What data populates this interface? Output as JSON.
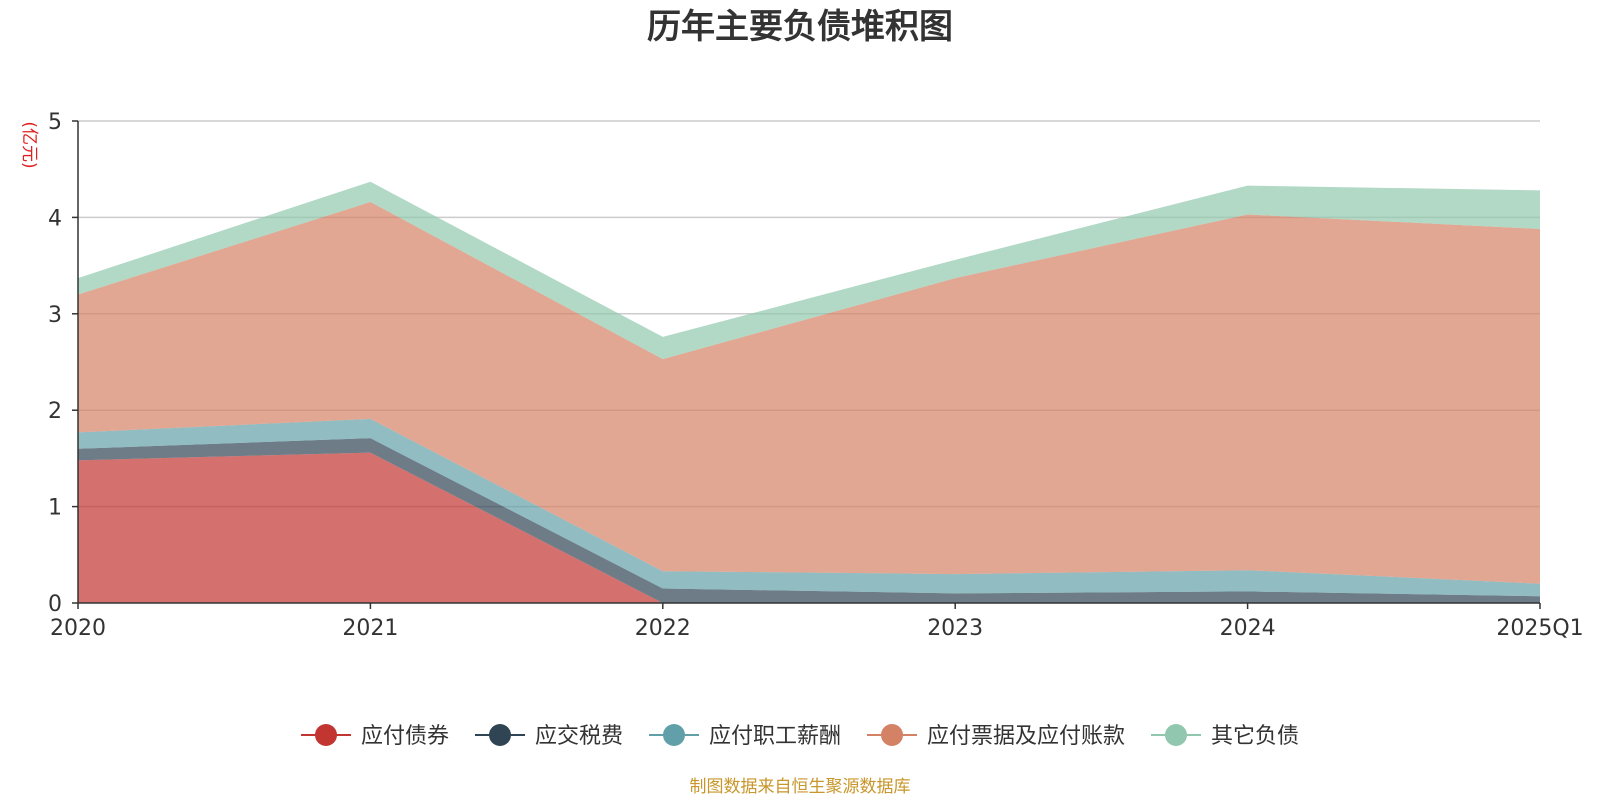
{
  "chart_data": {
    "type": "area",
    "stacked": true,
    "title": "历年主要负债堆积图",
    "unit_label": "(亿元)",
    "source_note": "制图数据来自恒生聚源数据库",
    "categories": [
      "2020",
      "2021",
      "2022",
      "2023",
      "2024",
      "2025Q1"
    ],
    "ylim": [
      0,
      5
    ],
    "yticks": [
      "0",
      "1",
      "2",
      "3",
      "4",
      "5"
    ],
    "grid": true,
    "legend_position": "bottom",
    "series": [
      {
        "name": "应付债券",
        "color": "#c23531",
        "values": [
          1.48,
          1.56,
          0.0,
          0.0,
          0.0,
          0.0
        ]
      },
      {
        "name": "应交税费",
        "color": "#2f4554",
        "values": [
          0.12,
          0.15,
          0.15,
          0.1,
          0.12,
          0.07
        ]
      },
      {
        "name": "应付职工薪酬",
        "color": "#61a0a8",
        "values": [
          0.17,
          0.2,
          0.18,
          0.2,
          0.22,
          0.13
        ]
      },
      {
        "name": "应付票据及应付账款",
        "color": "#d48265",
        "values": [
          1.43,
          2.25,
          2.2,
          3.07,
          3.69,
          3.68
        ]
      },
      {
        "name": "其它负债",
        "color": "#91c7ae",
        "values": [
          0.17,
          0.21,
          0.23,
          0.19,
          0.3,
          0.4
        ]
      }
    ]
  }
}
